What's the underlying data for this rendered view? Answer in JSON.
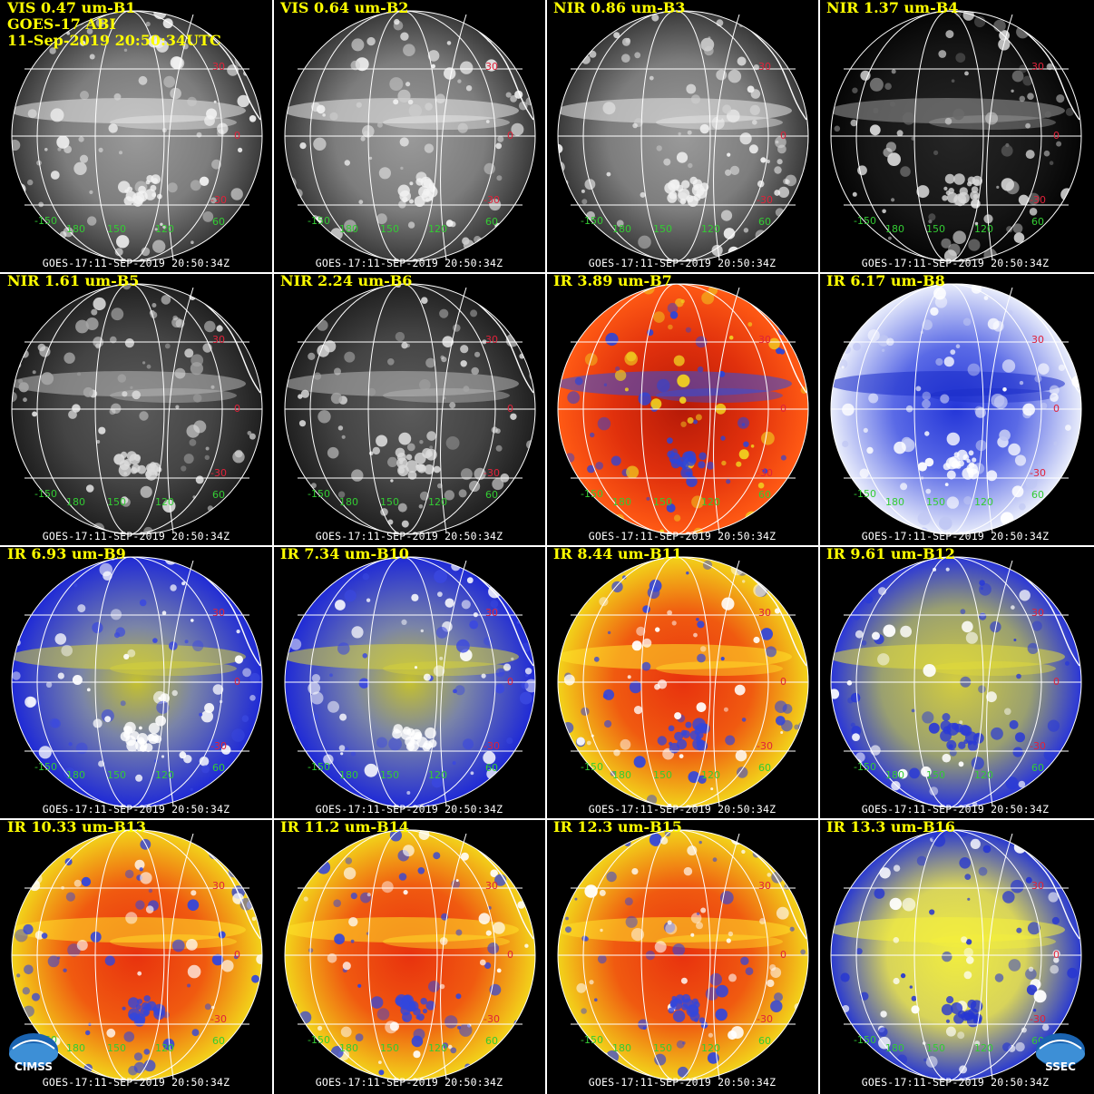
{
  "header": {
    "satellite": "GOES-17 ABI",
    "datetime": "11-Sep-2019 20:50:34UTC"
  },
  "stamp": "GOES-17:11-SEP-2019 20:50:34Z",
  "grid_labels": {
    "lat_30": "30",
    "lat_0": "0",
    "lat_m30": "-30",
    "lon_m150": "-150",
    "lon_180": "180",
    "lon_150": "150",
    "lon_120": "120",
    "lat_60": "60"
  },
  "logos": {
    "left": "CIMSS",
    "right": "SSEC"
  },
  "panels": [
    {
      "title": "VIS 0.47 um-B1",
      "scheme": "vis"
    },
    {
      "title": "VIS 0.64 um-B2",
      "scheme": "vis"
    },
    {
      "title": "NIR 0.86 um-B3",
      "scheme": "vis"
    },
    {
      "title": "NIR 1.37 um-B4",
      "scheme": "dark"
    },
    {
      "title": "NIR 1.61 um-B5",
      "scheme": "nir"
    },
    {
      "title": "NIR 2.24 um-B6",
      "scheme": "nir"
    },
    {
      "title": "IR 3.89 um-B7",
      "scheme": "red"
    },
    {
      "title": "IR 6.17 um-B8",
      "scheme": "wv1"
    },
    {
      "title": "IR 6.93 um-B9",
      "scheme": "wv2"
    },
    {
      "title": "IR 7.34 um-B10",
      "scheme": "wv2"
    },
    {
      "title": "IR 8.44 um-B11",
      "scheme": "ir"
    },
    {
      "title": "IR 9.61 um-B12",
      "scheme": "oz"
    },
    {
      "title": "IR 10.33 um-B13",
      "scheme": "ir"
    },
    {
      "title": "IR 11.2 um-B14",
      "scheme": "ir"
    },
    {
      "title": "IR 12.3 um-B15",
      "scheme": "ir"
    },
    {
      "title": "IR 13.3 um-B16",
      "scheme": "co2"
    }
  ],
  "colors": {
    "title": "#ffff00",
    "lat_label": "#e0223a",
    "lon_label": "#33cc33",
    "gridline": "#ffffff",
    "divider": "#ffffff"
  }
}
